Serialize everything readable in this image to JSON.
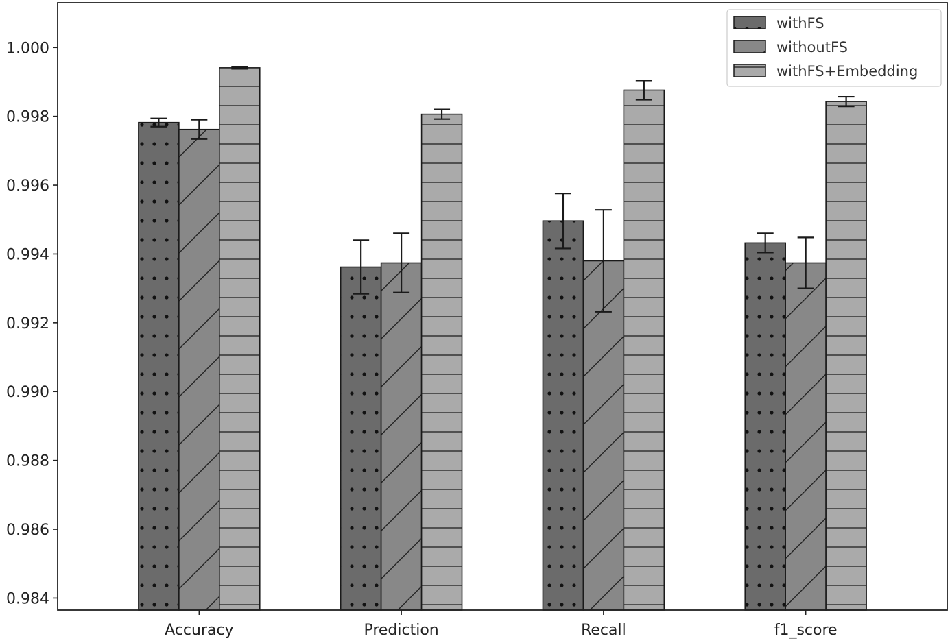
{
  "chart_data": {
    "type": "bar",
    "categories": [
      "Accuracy",
      "Prediction",
      "Recall",
      "f1_score"
    ],
    "series": [
      {
        "name": "withFS",
        "values": [
          0.99782,
          0.99362,
          0.99496,
          0.99432
        ],
        "errors": [
          0.00012,
          0.00078,
          0.0008,
          0.00028
        ],
        "color": "#6b6b6b",
        "pattern": "dots"
      },
      {
        "name": "withoutFS",
        "values": [
          0.99762,
          0.99374,
          0.9938,
          0.99374
        ],
        "errors": [
          0.00028,
          0.00086,
          0.00148,
          0.00074
        ],
        "color": "#888888",
        "pattern": "diagonal"
      },
      {
        "name": "withFS+Embedding",
        "values": [
          0.99941,
          0.99806,
          0.99876,
          0.99843
        ],
        "errors": [
          3e-05,
          0.00014,
          0.00028,
          0.00014
        ],
        "color": "#aaaaaa",
        "pattern": "horizontal"
      }
    ],
    "title": "",
    "xlabel": "",
    "ylabel": "",
    "ylim": [
      0.98365,
      1.0013
    ],
    "yticks": [
      "0.984",
      "0.986",
      "0.988",
      "0.990",
      "0.992",
      "0.994",
      "0.996",
      "0.998",
      "1.000"
    ],
    "legend": "top-right",
    "grid": false
  }
}
